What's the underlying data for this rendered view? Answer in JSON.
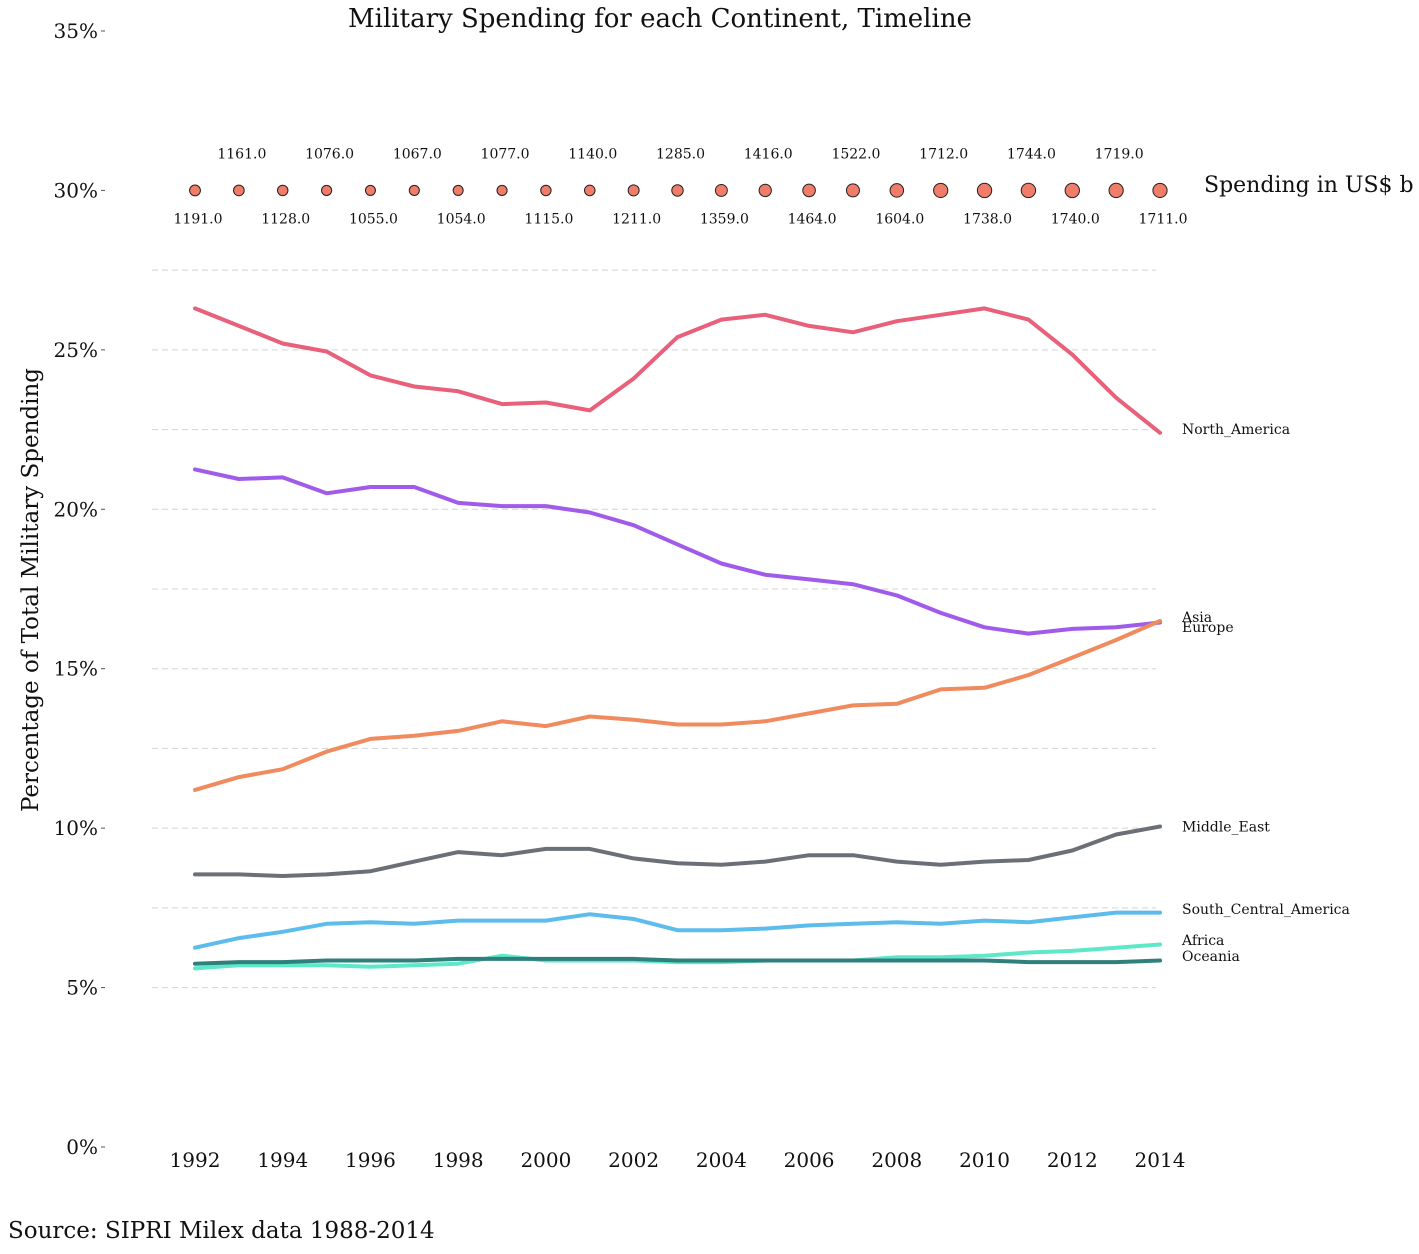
{
  "chart_data": {
    "type": "line",
    "title": "Military Spending for each Continent, Timeline",
    "xlabel": "",
    "ylabel": "Percentage of Total Military Spending",
    "ylim": [
      0,
      35
    ],
    "y_ticks": [
      "0%",
      "5%",
      "10%",
      "15%",
      "20%",
      "25%",
      "30%",
      "35%"
    ],
    "x_ticks": [
      "1992",
      "1994",
      "1996",
      "1998",
      "2000",
      "2002",
      "2004",
      "2006",
      "2008",
      "2010",
      "2012",
      "2014"
    ],
    "grid": "horizontal dashed",
    "x": [
      1992,
      1993,
      1994,
      1995,
      1996,
      1997,
      1998,
      1999,
      2000,
      2001,
      2002,
      2003,
      2004,
      2005,
      2006,
      2007,
      2008,
      2009,
      2010,
      2011,
      2012,
      2013,
      2014
    ],
    "series": [
      {
        "name": "North_America",
        "color": "#e8607a",
        "values": [
          26.3,
          25.75,
          25.2,
          24.95,
          24.2,
          23.85,
          23.7,
          23.3,
          23.35,
          23.1,
          24.1,
          25.4,
          25.95,
          26.1,
          25.75,
          25.55,
          25.9,
          26.1,
          26.3,
          25.95,
          24.85,
          23.5,
          22.4
        ]
      },
      {
        "name": "Europe",
        "color": "#a05bea",
        "values": [
          21.25,
          20.95,
          21.0,
          20.5,
          20.7,
          20.7,
          20.2,
          20.1,
          20.1,
          19.9,
          19.5,
          18.9,
          18.3,
          17.95,
          17.8,
          17.65,
          17.3,
          16.75,
          16.3,
          16.1,
          16.25,
          16.3,
          16.45
        ]
      },
      {
        "name": "Asia",
        "color": "#ef8b5f",
        "values": [
          11.2,
          11.6,
          11.85,
          12.4,
          12.8,
          12.9,
          13.05,
          13.35,
          13.2,
          13.5,
          13.4,
          13.25,
          13.25,
          13.35,
          13.6,
          13.85,
          13.9,
          14.35,
          14.4,
          14.8,
          15.35,
          15.9,
          16.5
        ]
      },
      {
        "name": "Middle_East",
        "color": "#6b7077",
        "values": [
          8.55,
          8.55,
          8.5,
          8.55,
          8.65,
          8.95,
          9.25,
          9.15,
          9.35,
          9.35,
          9.05,
          8.9,
          8.85,
          8.95,
          9.15,
          9.15,
          8.95,
          8.85,
          8.95,
          9.0,
          9.3,
          9.8,
          10.05
        ]
      },
      {
        "name": "South_Central_America",
        "color": "#5cbcec",
        "values": [
          6.25,
          6.55,
          6.75,
          7.0,
          7.05,
          7.0,
          7.1,
          7.1,
          7.1,
          7.3,
          7.15,
          6.8,
          6.8,
          6.85,
          6.95,
          7.0,
          7.05,
          7.0,
          7.1,
          7.05,
          7.2,
          7.35,
          7.35
        ]
      },
      {
        "name": "Africa",
        "color": "#5de8c8",
        "values": [
          5.6,
          5.7,
          5.7,
          5.7,
          5.65,
          5.7,
          5.75,
          6.0,
          5.85,
          5.85,
          5.85,
          5.8,
          5.8,
          5.85,
          5.85,
          5.85,
          5.95,
          5.95,
          6.0,
          6.1,
          6.15,
          6.25,
          6.35
        ]
      },
      {
        "name": "Oceania",
        "color": "#2f7f7b",
        "values": [
          5.75,
          5.8,
          5.8,
          5.85,
          5.85,
          5.85,
          5.9,
          5.9,
          5.9,
          5.9,
          5.9,
          5.85,
          5.85,
          5.85,
          5.85,
          5.85,
          5.85,
          5.85,
          5.85,
          5.8,
          5.8,
          5.8,
          5.85
        ]
      }
    ],
    "bubble_row": {
      "label": "Spending in US$ b",
      "y": 30,
      "color": "#f07d6a",
      "values": [
        1191.0,
        1161.0,
        1128.0,
        1076.0,
        1055.0,
        1067.0,
        1054.0,
        1077.0,
        1115.0,
        1140.0,
        1211.0,
        1285.0,
        1359.0,
        1416.0,
        1464.0,
        1522.0,
        1604.0,
        1712.0,
        1738.0,
        1744.0,
        1740.0,
        1719.0,
        1711.0
      ],
      "labels": [
        "1191.0",
        "1161.0",
        "1128.0",
        "1076.0",
        "1055.0",
        "1067.0",
        "1054.0",
        "1077.0",
        "1115.0",
        "1140.0",
        "1211.0",
        "1285.0",
        "1359.0",
        "1416.0",
        "1464.0",
        "1522.0",
        "1604.0",
        "1712.0",
        "1738.0",
        "1744.0",
        "1740.0",
        "1719.0",
        "1711.0"
      ]
    }
  },
  "source": "Source: SIPRI Milex data 1988-2014"
}
